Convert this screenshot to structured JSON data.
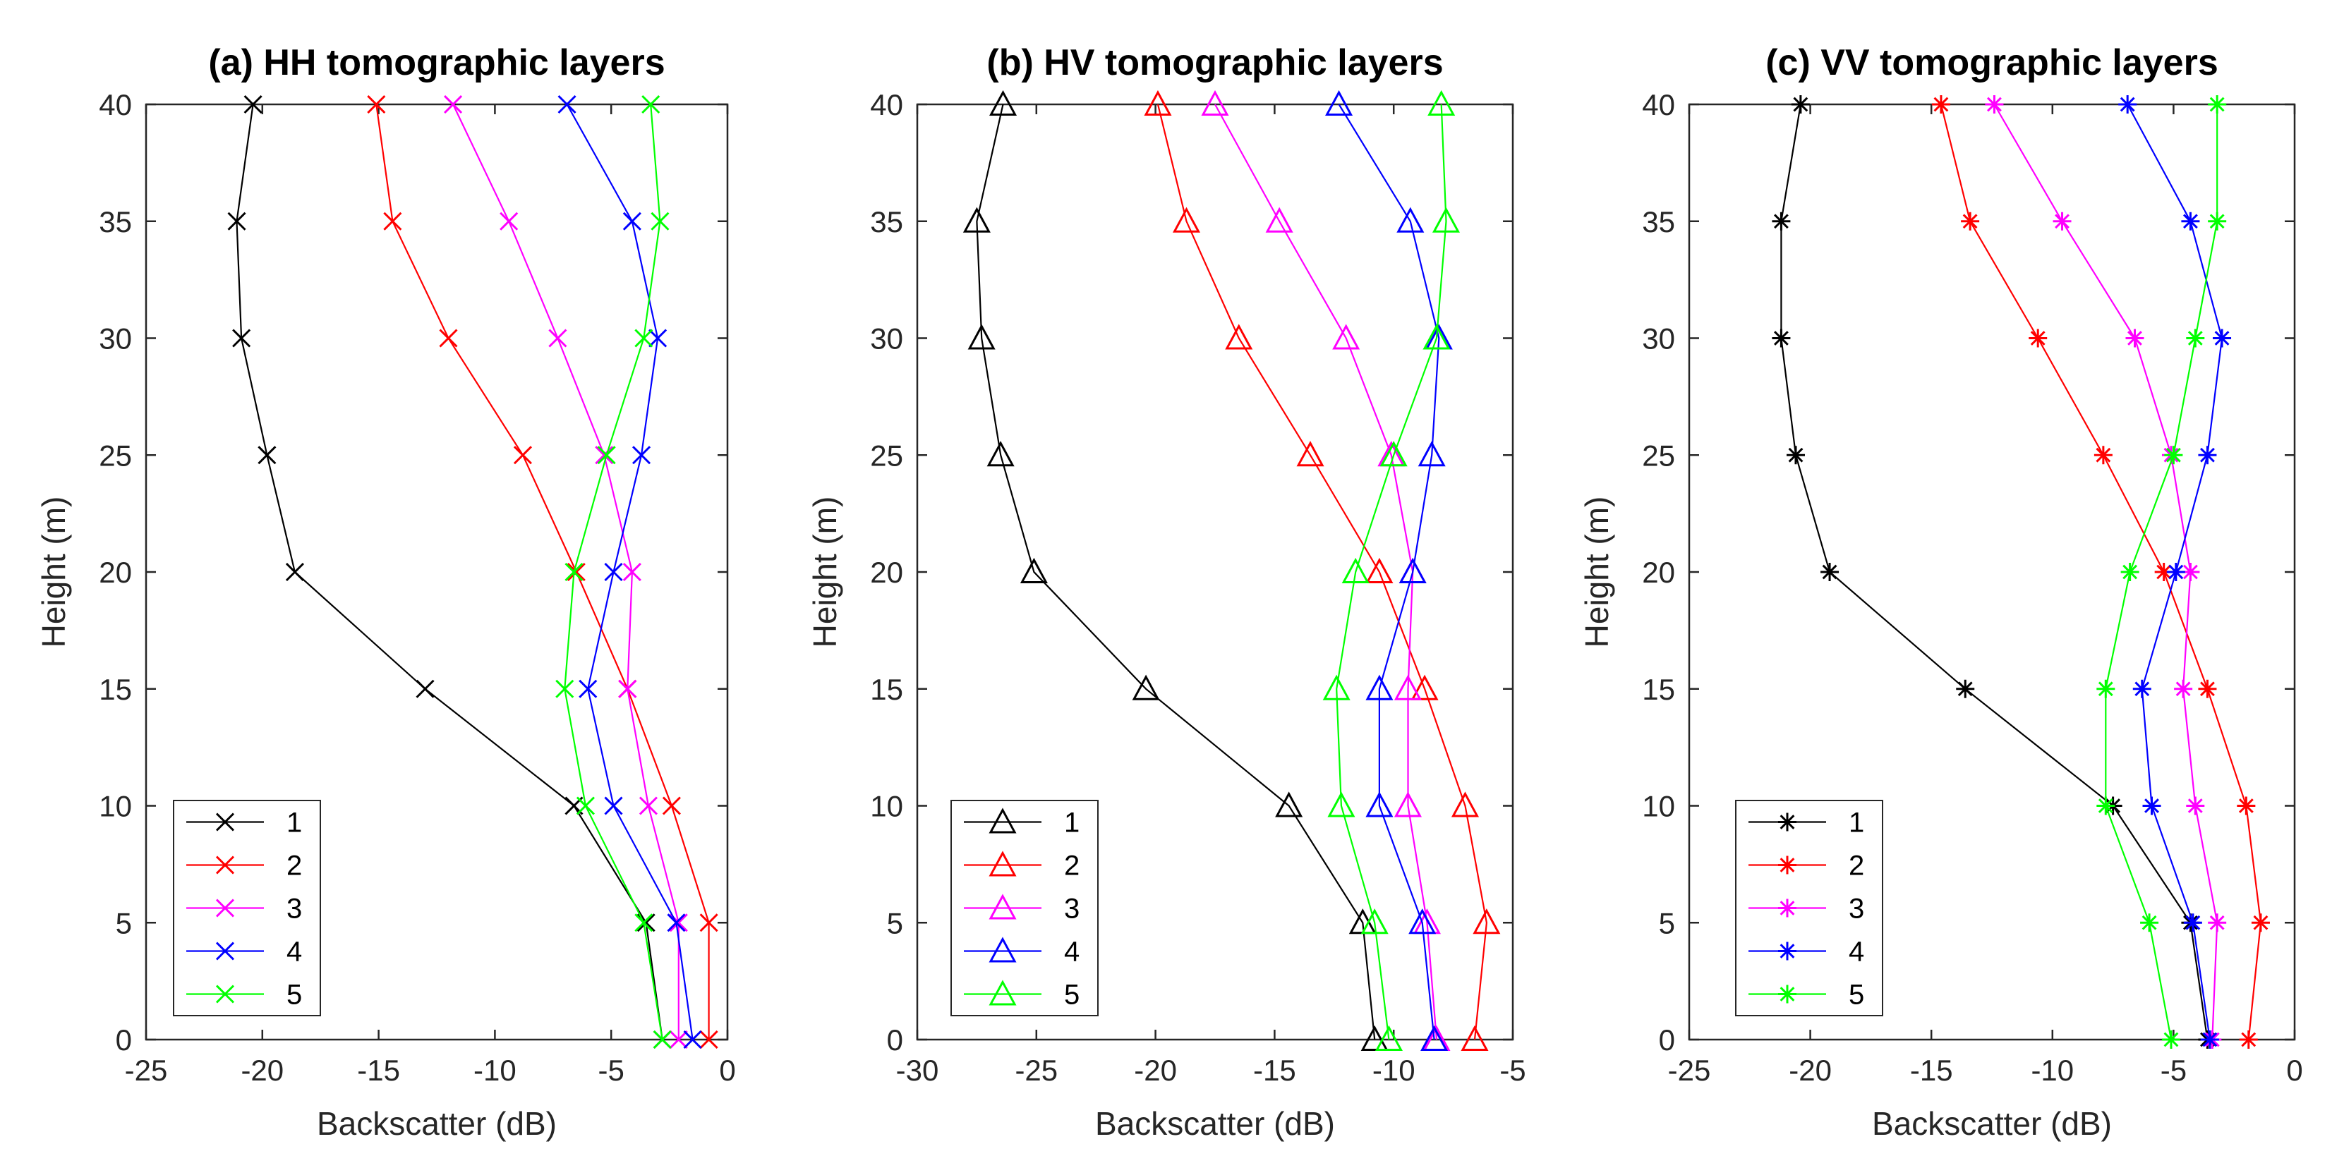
{
  "chart_data": [
    {
      "type": "line",
      "title": "(a) HH tomographic layers",
      "xlabel": "Backscatter (dB)",
      "ylabel": "Height (m)",
      "xlim": [
        -25,
        0
      ],
      "ylim": [
        0,
        40
      ],
      "xticks": [
        -25,
        -20,
        -15,
        -10,
        -5,
        0
      ],
      "yticks": [
        0,
        5,
        10,
        15,
        20,
        25,
        30,
        35,
        40
      ],
      "marker": "x",
      "legend_location": "bottom-left",
      "y": [
        0,
        5,
        10,
        15,
        20,
        25,
        30,
        35,
        40
      ],
      "series": [
        {
          "name": "1",
          "color": "#000000",
          "x": [
            -2.8,
            -3.5,
            -6.6,
            -13.0,
            -18.6,
            -19.8,
            -20.9,
            -21.1,
            -20.4
          ]
        },
        {
          "name": "2",
          "color": "#ff0000",
          "x": [
            -0.8,
            -0.8,
            -2.4,
            -4.3,
            -6.5,
            -8.8,
            -12.0,
            -14.4,
            -15.1
          ]
        },
        {
          "name": "3",
          "color": "#ff00ff",
          "x": [
            -2.1,
            -2.1,
            -3.4,
            -4.3,
            -4.1,
            -5.3,
            -7.3,
            -9.4,
            -11.8
          ]
        },
        {
          "name": "4",
          "color": "#0000ff",
          "x": [
            -1.5,
            -2.2,
            -4.9,
            -6.0,
            -4.9,
            -3.7,
            -3.0,
            -4.1,
            -6.9
          ]
        },
        {
          "name": "5",
          "color": "#00ff00",
          "x": [
            -2.8,
            -3.6,
            -6.1,
            -7.0,
            -6.6,
            -5.2,
            -3.6,
            -2.9,
            -3.3
          ]
        }
      ]
    },
    {
      "type": "line",
      "title": "(b) HV tomographic layers",
      "xlabel": "Backscatter (dB)",
      "ylabel": "Height (m)",
      "xlim": [
        -30,
        -5
      ],
      "ylim": [
        0,
        40
      ],
      "xticks": [
        -30,
        -25,
        -20,
        -15,
        -10,
        -5
      ],
      "yticks": [
        0,
        5,
        10,
        15,
        20,
        25,
        30,
        35,
        40
      ],
      "marker": "triangle",
      "legend_location": "bottom-left",
      "y": [
        0,
        5,
        10,
        15,
        20,
        25,
        30,
        35,
        40
      ],
      "series": [
        {
          "name": "1",
          "color": "#000000",
          "x": [
            -10.8,
            -11.3,
            -14.4,
            -20.4,
            -25.1,
            -26.5,
            -27.3,
            -27.5,
            -26.4
          ]
        },
        {
          "name": "2",
          "color": "#ff0000",
          "x": [
            -6.6,
            -6.1,
            -7.0,
            -8.7,
            -10.6,
            -13.5,
            -16.5,
            -18.7,
            -19.9
          ]
        },
        {
          "name": "3",
          "color": "#ff00ff",
          "x": [
            -8.2,
            -8.6,
            -9.4,
            -9.4,
            -9.2,
            -10.1,
            -12.0,
            -14.8,
            -17.5
          ]
        },
        {
          "name": "4",
          "color": "#0000ff",
          "x": [
            -8.3,
            -8.8,
            -10.6,
            -10.6,
            -9.2,
            -8.4,
            -8.1,
            -9.3,
            -12.3
          ]
        },
        {
          "name": "5",
          "color": "#00ff00",
          "x": [
            -10.2,
            -10.8,
            -12.2,
            -12.4,
            -11.6,
            -10.0,
            -8.2,
            -7.8,
            -8.0
          ]
        }
      ]
    },
    {
      "type": "line",
      "title": "(c) VV tomographic layers",
      "xlabel": "Backscatter (dB)",
      "ylabel": "Height (m)",
      "xlim": [
        -25,
        0
      ],
      "ylim": [
        0,
        40
      ],
      "xticks": [
        -25,
        -20,
        -15,
        -10,
        -5,
        0
      ],
      "yticks": [
        0,
        5,
        10,
        15,
        20,
        25,
        30,
        35,
        40
      ],
      "marker": "asterisk",
      "legend_location": "bottom-left",
      "y": [
        0,
        5,
        10,
        15,
        20,
        25,
        30,
        35,
        40
      ],
      "series": [
        {
          "name": "1",
          "color": "#000000",
          "x": [
            -3.6,
            -4.3,
            -7.5,
            -13.6,
            -19.2,
            -20.6,
            -21.2,
            -21.2,
            -20.4
          ]
        },
        {
          "name": "2",
          "color": "#ff0000",
          "x": [
            -1.9,
            -1.4,
            -2.0,
            -3.6,
            -5.4,
            -7.9,
            -10.6,
            -13.4,
            -14.6
          ]
        },
        {
          "name": "3",
          "color": "#ff00ff",
          "x": [
            -3.4,
            -3.2,
            -4.1,
            -4.6,
            -4.3,
            -5.1,
            -6.6,
            -9.6,
            -12.4
          ]
        },
        {
          "name": "4",
          "color": "#0000ff",
          "x": [
            -3.5,
            -4.2,
            -5.9,
            -6.3,
            -4.9,
            -3.6,
            -3.0,
            -4.3,
            -6.9
          ]
        },
        {
          "name": "5",
          "color": "#00ff00",
          "x": [
            -5.1,
            -6.0,
            -7.8,
            -7.8,
            -6.8,
            -5.0,
            -4.1,
            -3.2,
            -3.2
          ]
        }
      ]
    }
  ]
}
